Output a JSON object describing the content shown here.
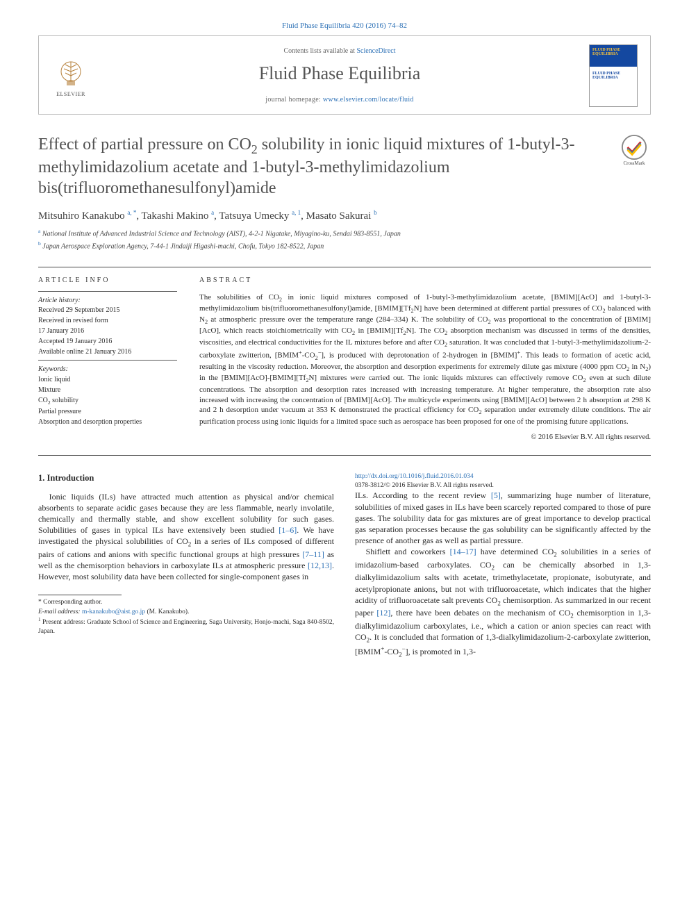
{
  "header": {
    "citation": "Fluid Phase Equilibria 420 (2016) 74–82",
    "contents_line_prefix": "Contents lists available at ",
    "contents_link": "ScienceDirect",
    "journal_name": "Fluid Phase Equilibria",
    "homepage_prefix": "journal homepage: ",
    "homepage_url": "www.elsevier.com/locate/fluid",
    "elsevier_label": "ELSEVIER",
    "cover_text1": "FLUID PHASE EQUILIBRIA",
    "cover_text2": "FLUID PHASE EQUILIBRIA",
    "crossmark_label": "CrossMark"
  },
  "article": {
    "title_html": "Effect of partial pressure on CO<sub>2</sub> solubility in ionic liquid mixtures of 1-butyl-3-methylimidazolium acetate and 1-butyl-3-methylimidazolium bis(trifluoromethanesulfonyl)amide",
    "authors_html": "Mitsuhiro Kanakubo <sup>a, *</sup>, Takashi Makino <sup>a</sup>, Tatsuya Umecky <sup>a, 1</sup>, Masato Sakurai <sup>b</sup>",
    "affiliations": [
      {
        "sup": "a",
        "text": "National Institute of Advanced Industrial Science and Technology (AIST), 4-2-1 Nigatake, Miyagino-ku, Sendai 983-8551, Japan"
      },
      {
        "sup": "b",
        "text": "Japan Aerospace Exploration Agency, 7-44-1 Jindaiji Higashi-machi, Chofu, Tokyo 182-8522, Japan"
      }
    ]
  },
  "info": {
    "heading": "ARTICLE INFO",
    "history_label": "Article history:",
    "history": [
      "Received 29 September 2015",
      "Received in revised form",
      "17 January 2016",
      "Accepted 19 January 2016",
      "Available online 21 January 2016"
    ],
    "keywords_label": "Keywords:",
    "keywords": [
      "Ionic liquid",
      "Mixture",
      "CO<sub>2</sub> solubility",
      "Partial pressure",
      "Absorption and desorption properties"
    ]
  },
  "abstract": {
    "heading": "ABSTRACT",
    "text_html": "The solubilities of CO<sub>2</sub> in ionic liquid mixtures composed of 1-butyl-3-methylimidazolium acetate, [BMIM][AcO] and 1-butyl-3-methylimidazolium bis(trifluoromethanesulfonyl)amide, [BMIM][Tf<sub>2</sub>N] have been determined at different partial pressures of CO<sub>2</sub> balanced with N<sub>2</sub> at atmospheric pressure over the temperature range (284–334) K. The solubility of CO<sub>2</sub> was proportional to the concentration of [BMIM][AcO], which reacts stoichiometrically with CO<sub>2</sub> in [BMIM][Tf<sub>2</sub>N]. The CO<sub>2</sub> absorption mechanism was discussed in terms of the densities, viscosities, and electrical conductivities for the IL mixtures before and after CO<sub>2</sub> saturation. It was concluded that 1-butyl-3-methylimidazolium-2-carboxylate zwitterion, [BMIM<sup>+</sup>-CO<sub>2</sub><sup>−</sup>], is produced with deprotonation of 2-hydrogen in [BMIM]<sup>+</sup>. This leads to formation of acetic acid, resulting in the viscosity reduction. Moreover, the absorption and desorption experiments for extremely dilute gas mixture (4000 ppm CO<sub>2</sub> in N<sub>2</sub>) in the [BMIM][AcO]-[BMIM][Tf<sub>2</sub>N] mixtures were carried out. The ionic liquids mixtures can effectively remove CO<sub>2</sub> even at such dilute concentrations. The absorption and desorption rates increased with increasing temperature. At higher temperature, the absorption rate also increased with increasing the concentration of [BMIM][AcO]. The multicycle experiments using [BMIM][AcO] between 2 h absorption at 298 K and 2 h desorption under vacuum at 353 K demonstrated the practical efficiency for CO<sub>2</sub> separation under extremely dilute conditions. The air purification process using ionic liquids for a limited space such as aerospace has been proposed for one of the promising future applications.",
    "copyright": "© 2016 Elsevier B.V. All rights reserved."
  },
  "body": {
    "section_heading": "1. Introduction",
    "p1_html": "Ionic liquids (ILs) have attracted much attention as physical and/or chemical absorbents to separate acidic gases because they are less flammable, nearly involatile, chemically and thermally stable, and show excellent solubility for such gases. Solubilities of gases in typical ILs have extensively been studied <a class='ref' href='#'>[1–6]</a>. We have investigated the physical solubilities of CO<sub>2</sub> in a series of ILs composed of different pairs of cations and anions with specific functional groups at high pressures <a class='ref' href='#'>[7–11]</a> as well as the chemisorption behaviors in carboxylate ILs at atmospheric pressure <a class='ref' href='#'>[12,13]</a>. However, most solubility data have been collected for single-component gases in",
    "p2_html": "ILs. According to the recent review <a class='ref' href='#'>[5]</a>, summarizing huge number of literature, solubilities of mixed gases in ILs have been scarcely reported compared to those of pure gases. The solubility data for gas mixtures are of great importance to develop practical gas separation processes because the gas solubility can be significantly affected by the presence of another gas as well as partial pressure.",
    "p3_html": "Shiflett and coworkers <a class='ref' href='#'>[14–17]</a> have determined CO<sub>2</sub> solubilities in a series of imidazolium-based carboxylates. CO<sub>2</sub> can be chemically absorbed in 1,3-dialkylimidazolium salts with acetate, trimethylacetate, propionate, isobutyrate, and acetylpropionate anions, but not with trifluoroacetate, which indicates that the higher acidity of trifluoroacetate salt prevents CO<sub>2</sub> chemisorption. As summarized in our recent paper <a class='ref' href='#'>[12]</a>, there have been debates on the mechanism of CO<sub>2</sub> chemisorption in 1,3-dialkylimidazolium carboxylates, i.e., which a cation or anion species can react with CO<sub>2</sub>. It is concluded that formation of 1,3-dialkylimidazolium-2-carboxylate zwitterion, [BMIM<sup>+</sup>-CO<sub>2</sub><sup>−</sup>], is promoted in 1,3-"
  },
  "footnotes": {
    "corr_label": "* Corresponding author.",
    "email_label": "E-mail address: ",
    "email": "m-kanakubo@aist.go.jp",
    "email_suffix": " (M. Kanakubo).",
    "note1": "<sup>1</sup> Present address: Graduate School of Science and Engineering, Saga University, Honjo-machi, Saga 840-8502, Japan."
  },
  "footer": {
    "doi": "http://dx.doi.org/10.1016/j.fluid.2016.01.034",
    "issn_line": "0378-3812/© 2016 Elsevier B.V. All rights reserved."
  },
  "colors": {
    "link": "#2a6fb5",
    "text": "#2a2a2a",
    "heading_gray": "#505050",
    "border": "#bbbbbb",
    "rule": "#444444"
  }
}
